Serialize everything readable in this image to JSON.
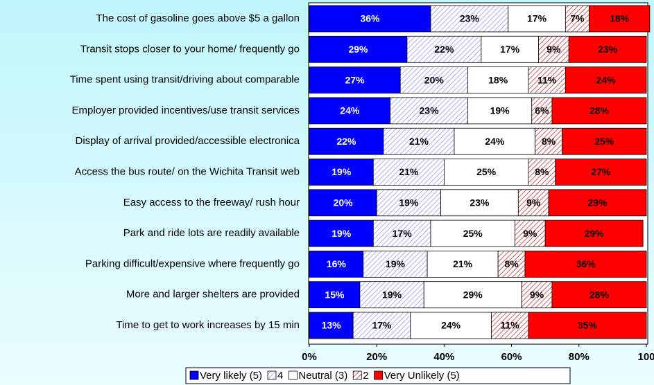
{
  "chart_data": {
    "type": "stacked_barh",
    "categories": [
      "The cost of gasoline goes above $5 a gallon",
      "Transit stops closer to your home/ frequently go",
      "Time spent using transit/driving about comparable",
      "Employer provided incentives/use transit services",
      "Display of arrival provided/accessible electronica",
      "Access the bus route/ on the Wichita Transit web",
      "Easy access to the freeway/ rush hour",
      "Park and ride lots are readily available",
      "Parking difficult/expensive where frequently go",
      "More and larger shelters are provided",
      "Time to get to work increases by 15 min"
    ],
    "series": [
      {
        "name": "Very likely (5)",
        "color": "#0000ff",
        "hatch": false,
        "values": [
          36,
          29,
          27,
          24,
          22,
          19,
          20,
          19,
          16,
          15,
          13
        ],
        "value_labels": [
          "36%",
          "29%",
          "27%",
          "24%",
          "22%",
          "19%",
          "20%",
          "19%",
          "16%",
          "15%",
          "13%"
        ]
      },
      {
        "name": "4",
        "color": "#9999ff",
        "hatch": true,
        "values": [
          23,
          22,
          20,
          23,
          21,
          21,
          19,
          17,
          19,
          19,
          17
        ],
        "value_labels": [
          "23%",
          "22%",
          "20%",
          "23%",
          "21%",
          "21%",
          "19%",
          "17%",
          "19%",
          "19%",
          "17%"
        ]
      },
      {
        "name": "Neutral (3)",
        "color": "#ffffff",
        "hatch": false,
        "values": [
          17,
          17,
          18,
          19,
          24,
          25,
          23,
          25,
          21,
          29,
          24
        ],
        "value_labels": [
          "17%",
          "17%",
          "18%",
          "19%",
          "24%",
          "25%",
          "23%",
          "25%",
          "21%",
          "29%",
          "24%"
        ]
      },
      {
        "name": "2",
        "color": "#cc3333",
        "hatch": true,
        "values": [
          7,
          9,
          11,
          6,
          8,
          8,
          9,
          9,
          8,
          9,
          11
        ],
        "value_labels": [
          "7%",
          "9%",
          "11%",
          "6%",
          "8%",
          "8%",
          "9%",
          "9%",
          "8%",
          "9%",
          "11%"
        ]
      },
      {
        "name": "Very Unlikely (5)",
        "color": "#ff0000",
        "hatch": false,
        "values": [
          18,
          23,
          24,
          28,
          25,
          27,
          29,
          29,
          36,
          28,
          35
        ],
        "value_labels": [
          "18%",
          "23%",
          "24%",
          "28%",
          "25%",
          "27%",
          "29%",
          "29%",
          "36%",
          "28%",
          "35%"
        ]
      }
    ],
    "xlim": [
      0,
      100
    ],
    "xticks": [
      {
        "value": 0,
        "label": "0%"
      },
      {
        "value": 20,
        "label": "20%"
      },
      {
        "value": 40,
        "label": "40%"
      },
      {
        "value": 60,
        "label": "60%"
      },
      {
        "value": 80,
        "label": "80%"
      },
      100
    ]
  }
}
